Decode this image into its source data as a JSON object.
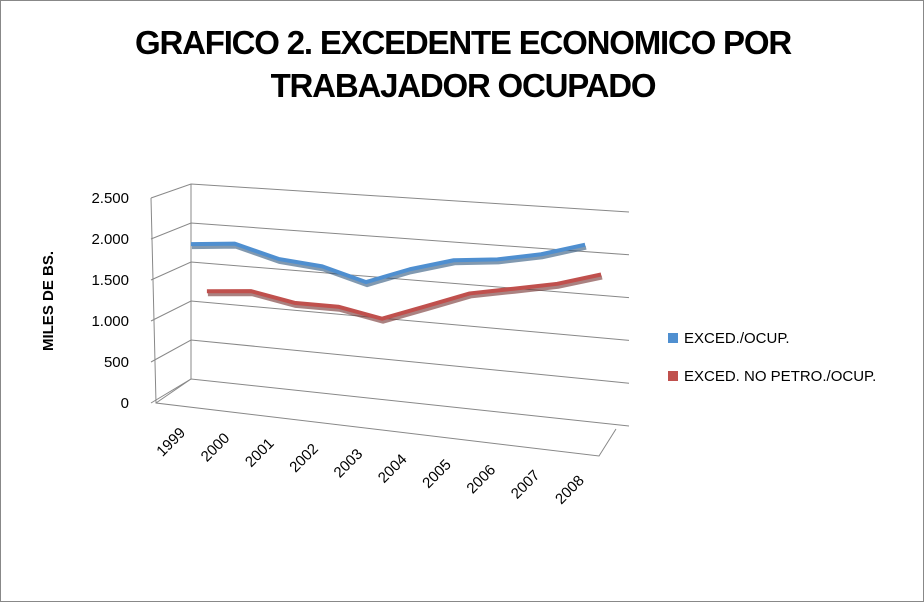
{
  "chart_data": {
    "type": "line3d",
    "title": "GRAFICO 2. EXCEDENTE ECONOMICO POR TRABAJADOR OCUPADO",
    "y_label": "MILES DE BS.",
    "categories": [
      "1999",
      "2000",
      "2001",
      "2002",
      "2003",
      "2004",
      "2005",
      "2006",
      "2007",
      "2008"
    ],
    "series": [
      {
        "name": "EXCED./OCUP.",
        "color": "#4f8fd0",
        "values": [
          1750,
          1800,
          1650,
          1600,
          1450,
          1650,
          1800,
          1850,
          1950,
          2100
        ]
      },
      {
        "name": "EXCED. NO PETRO./OCUP.",
        "color": "#c0504d",
        "values": [
          1150,
          1200,
          1100,
          1100,
          1000,
          1200,
          1400,
          1500,
          1600,
          1750
        ]
      }
    ],
    "ylim": [
      0,
      2500
    ],
    "yticks": [
      0,
      500,
      {
        "value": 1000,
        "label": "1.000"
      },
      {
        "value": 1500,
        "label": "1.500"
      },
      {
        "value": 2000,
        "label": "2.000"
      },
      {
        "value": 2500,
        "label": "2.500"
      }
    ],
    "grid": true,
    "legend": "right"
  }
}
